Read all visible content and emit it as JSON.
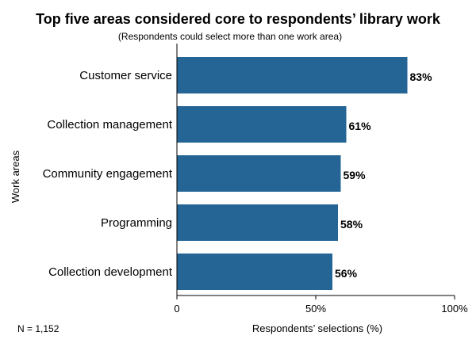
{
  "chart_data": {
    "type": "bar",
    "orientation": "horizontal",
    "title": "Top five areas considered core to respondents’ library work",
    "subtitle": "(Respondents could select more than one work area)",
    "categories": [
      "Customer service",
      "Collection management",
      "Community engagement",
      "Programming",
      "Collection development"
    ],
    "values": [
      83,
      61,
      59,
      58,
      56
    ],
    "data_labels": [
      "83%",
      "61%",
      "59%",
      "58%",
      "56%"
    ],
    "xlabel": "Respondents’ selections (%)",
    "ylabel": "Work areas",
    "xlim": [
      0,
      100
    ],
    "x_ticks": [
      0,
      50,
      100
    ],
    "x_tick_labels": [
      "0",
      "50%",
      "100%"
    ],
    "grid": false,
    "bar_color": "#256596",
    "note": "N = 1,152"
  }
}
